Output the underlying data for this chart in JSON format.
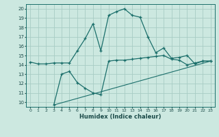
{
  "xlabel": "Humidex (Indice chaleur)",
  "bg_color": "#cce8e0",
  "grid_color": "#a8ccc4",
  "line_color": "#1a6e6a",
  "xlim": [
    -0.5,
    23.5
  ],
  "ylim": [
    9.5,
    20.5
  ],
  "xticks": [
    0,
    1,
    2,
    3,
    4,
    5,
    6,
    7,
    8,
    9,
    10,
    11,
    12,
    13,
    14,
    15,
    16,
    17,
    18,
    19,
    20,
    21,
    22,
    23
  ],
  "yticks": [
    10,
    11,
    12,
    13,
    14,
    15,
    16,
    17,
    18,
    19,
    20
  ],
  "series1_x": [
    0,
    1,
    2,
    3,
    4,
    5,
    6,
    7,
    8,
    9,
    10,
    11,
    12,
    13,
    14,
    15,
    16,
    17,
    18,
    19,
    20,
    21,
    22,
    23
  ],
  "series1_y": [
    14.3,
    14.1,
    14.1,
    14.2,
    14.2,
    14.2,
    15.5,
    16.8,
    18.4,
    15.5,
    19.3,
    19.7,
    20.0,
    19.3,
    19.1,
    17.0,
    15.3,
    15.8,
    14.7,
    14.8,
    15.0,
    14.1,
    14.4,
    14.4
  ],
  "series2_x": [
    3,
    4,
    5,
    6,
    7,
    8,
    9,
    10,
    11,
    12,
    13,
    14,
    15,
    16,
    17,
    18,
    19,
    20,
    21,
    22,
    23
  ],
  "series2_y": [
    9.7,
    13.0,
    13.3,
    12.1,
    11.5,
    11.0,
    10.8,
    14.4,
    14.5,
    14.5,
    14.6,
    14.7,
    14.8,
    14.9,
    15.0,
    14.6,
    14.5,
    14.0,
    14.2,
    14.4,
    14.4
  ],
  "series3_x": [
    3,
    23
  ],
  "series3_y": [
    9.7,
    14.4
  ],
  "figwidth": 3.2,
  "figheight": 2.0,
  "dpi": 100
}
